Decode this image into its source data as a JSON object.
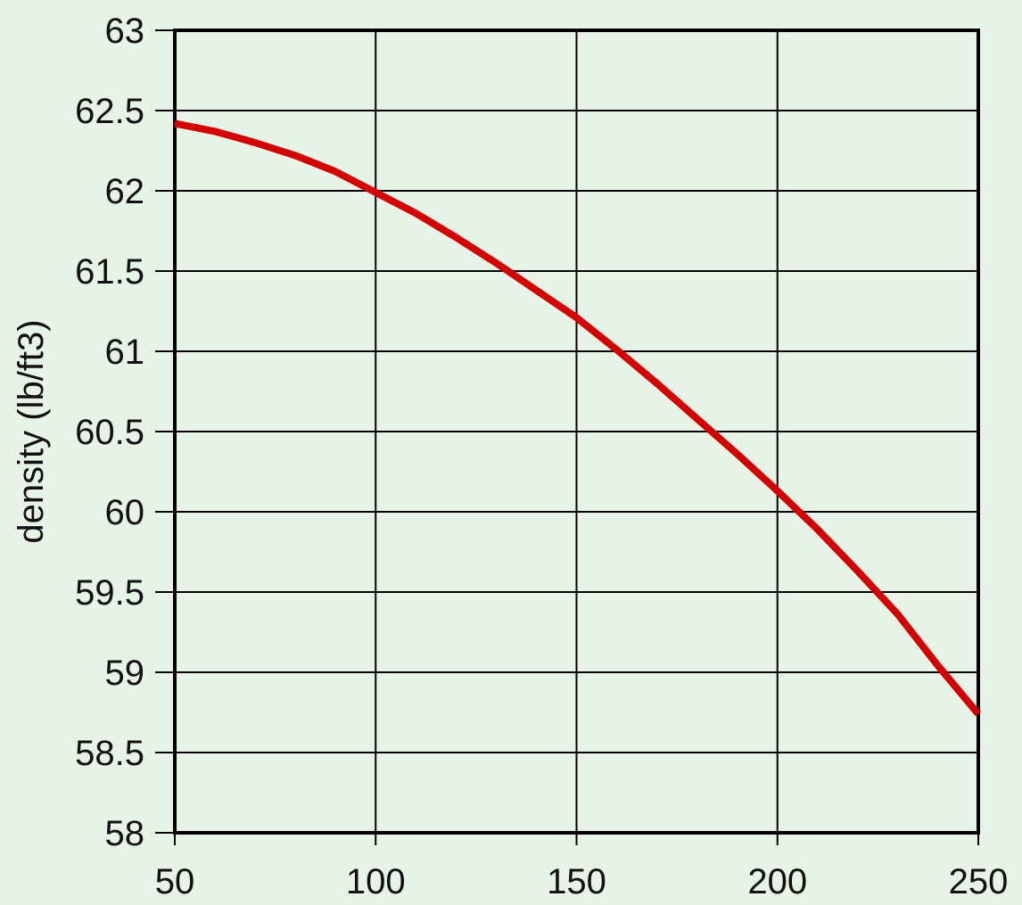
{
  "chart_data": {
    "type": "line",
    "y_label": "density (lb/ft3)",
    "x": [
      50,
      60,
      70,
      80,
      90,
      100,
      110,
      120,
      130,
      140,
      150,
      160,
      170,
      180,
      190,
      200,
      210,
      220,
      230,
      240,
      250
    ],
    "series": [
      {
        "name": null,
        "color": "#d40000",
        "values": [
          62.42,
          62.37,
          62.3,
          62.22,
          62.12,
          61.99,
          61.86,
          61.71,
          61.55,
          61.38,
          61.21,
          61.01,
          60.8,
          60.58,
          60.36,
          60.13,
          59.89,
          59.63,
          59.36,
          59.04,
          58.74
        ]
      }
    ],
    "xlim": [
      50,
      250
    ],
    "xticks": [
      50,
      100,
      150,
      200,
      250
    ],
    "ylim": [
      58,
      63
    ],
    "yticks": [
      58,
      58.5,
      59,
      59.5,
      60,
      60.5,
      61,
      61.5,
      62,
      62.5,
      63
    ],
    "grid": true
  }
}
